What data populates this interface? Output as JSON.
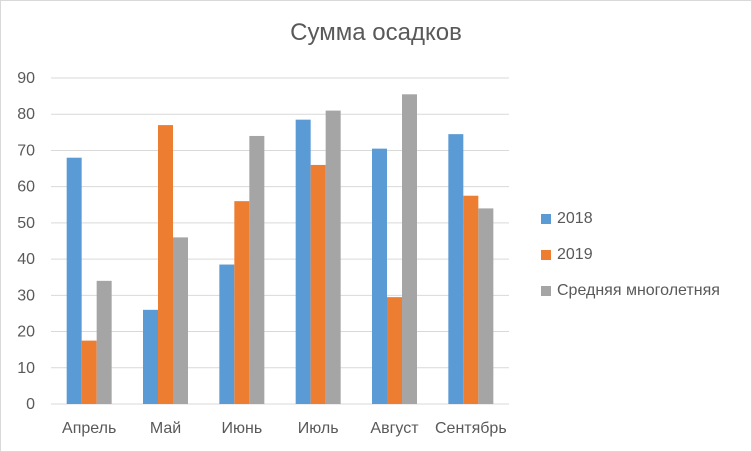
{
  "chart_data": {
    "type": "bar",
    "title": "Сумма осадков",
    "xlabel": "",
    "ylabel": "",
    "categories": [
      "Апрель",
      "Май",
      "Июнь",
      "Июль",
      "Август",
      "Сентябрь"
    ],
    "series": [
      {
        "name": "2018",
        "color": "#5b9bd5",
        "values": [
          68,
          26,
          38.5,
          78.5,
          70.5,
          74.5
        ]
      },
      {
        "name": "2019",
        "color": "#ed7d31",
        "values": [
          17.5,
          77,
          56,
          66,
          29.5,
          57.5
        ]
      },
      {
        "name": "Средняя многолетняя",
        "color": "#a5a5a5",
        "values": [
          34,
          46,
          74,
          81,
          85.5,
          54
        ]
      }
    ],
    "ylim": [
      0,
      90
    ],
    "yticks": [
      "0",
      "10",
      "20",
      "30",
      "40",
      "50",
      "60",
      "70",
      "80",
      "90"
    ],
    "grid": true,
    "legend_position": "right"
  }
}
